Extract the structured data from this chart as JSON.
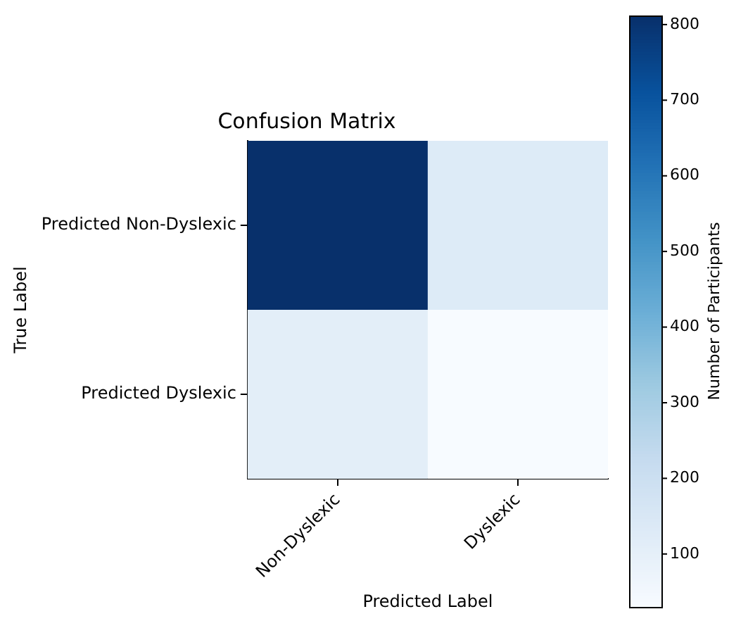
{
  "chart_data": {
    "type": "heatmap",
    "title": "Confusion Matrix",
    "xlabel": "Predicted Label",
    "ylabel": "True Label",
    "clabel": "Number of Participants",
    "categories": [
      "Non-Dyslexic",
      "Dyslexic"
    ],
    "y_categories": [
      "Predicted Non-Dyslexic",
      "Predicted Dyslexic"
    ],
    "cells": [
      [
        812,
        130
      ],
      [
        110,
        30
      ]
    ],
    "clim": [
      30,
      812
    ],
    "cticks": [
      100,
      200,
      300,
      400,
      500,
      600,
      700,
      800
    ]
  }
}
